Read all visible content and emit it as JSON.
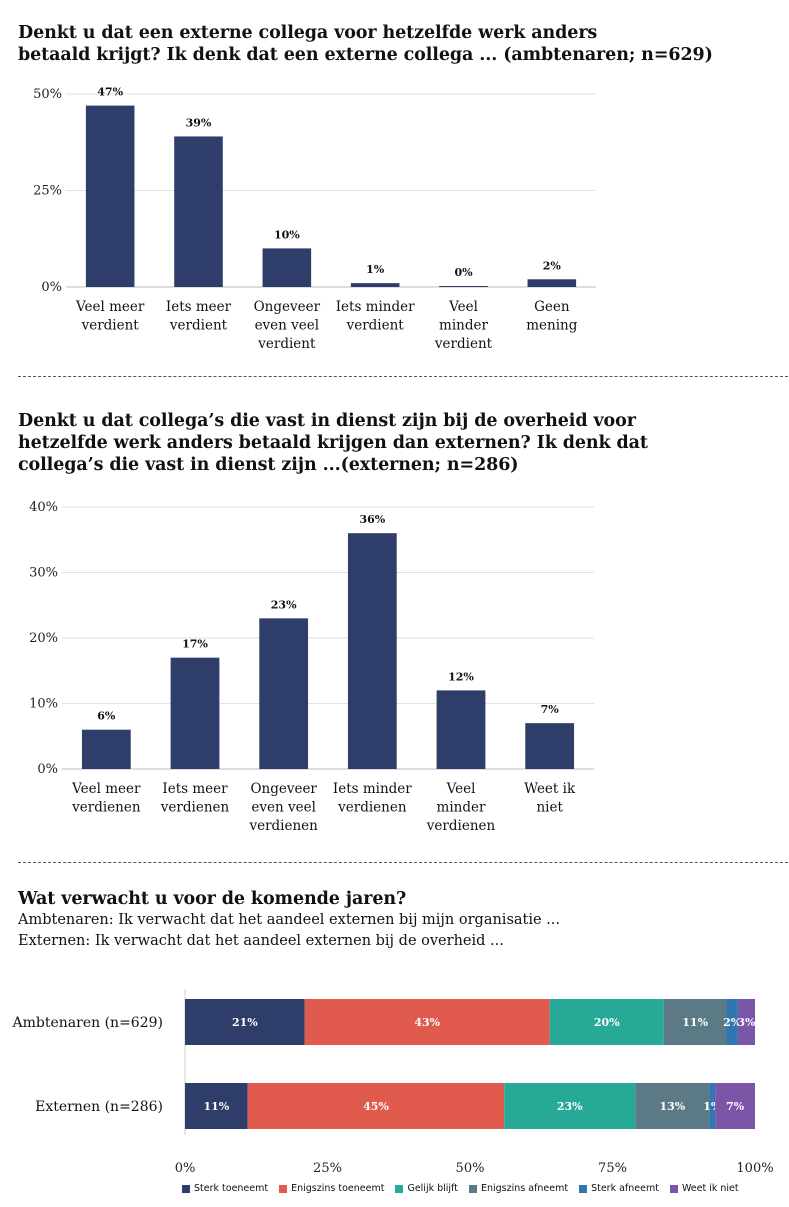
{
  "sections": [
    {
      "title_lines": [
        "Denkt u dat een externe collega voor hetzelfde werk anders",
        "betaald krijgt? Ik denk dat een externe collega ... (ambtenaren; n=629)"
      ]
    },
    {
      "title_lines": [
        "Denkt u dat collega’s die vast in dienst zijn bij de overheid voor",
        "hetzelfde werk anders betaald krijgen dan externen? Ik denk dat",
        "collega’s die vast in dienst zijn ...(externen; n=286)"
      ]
    },
    {
      "title_lines": [
        "Wat verwacht u voor de komende jaren?"
      ],
      "subtitle_lines": [
        "Ambtenaren: Ik verwacht dat het aandeel externen bij mijn organisatie ...",
        "Externen: Ik verwacht dat het aandeel externen bij de overheid ..."
      ]
    }
  ],
  "chart_data": [
    {
      "type": "bar",
      "categories": [
        "Veel meer verdient",
        "Iets meer verdient",
        "Ongeveer even veel verdient",
        "Iets minder verdient",
        "Veel minder verdient",
        "Geen mening"
      ],
      "category_lines": [
        [
          "Veel meer",
          "verdient"
        ],
        [
          "Iets meer",
          "verdient"
        ],
        [
          "Ongeveer",
          "even veel",
          "verdient"
        ],
        [
          "Iets minder",
          "verdient"
        ],
        [
          "Veel",
          "minder",
          "verdient"
        ],
        [
          "Geen",
          "mening"
        ]
      ],
      "values": [
        47,
        39,
        10,
        1,
        0,
        2
      ],
      "value_labels": [
        "47%",
        "39%",
        "10%",
        "1%",
        "0%",
        "2%"
      ],
      "yticks": [
        0,
        25,
        50
      ],
      "ytick_labels": [
        "0%",
        "25%",
        "50%"
      ],
      "ylim": [
        0,
        50
      ],
      "color": "#2e3d69",
      "grid": true
    },
    {
      "type": "bar",
      "categories": [
        "Veel meer verdienen",
        "Iets meer verdienen",
        "Ongeveer even veel verdienen",
        "Iets minder verdienen",
        "Veel minder verdienen",
        "Weet ik niet"
      ],
      "category_lines": [
        [
          "Veel meer",
          "verdienen"
        ],
        [
          "Iets meer",
          "verdienen"
        ],
        [
          "Ongeveer",
          "even veel",
          "verdienen"
        ],
        [
          "Iets minder",
          "verdienen"
        ],
        [
          "Veel",
          "minder",
          "verdienen"
        ],
        [
          "Weet ik",
          "niet"
        ]
      ],
      "values": [
        6,
        17,
        23,
        36,
        12,
        7
      ],
      "value_labels": [
        "6%",
        "17%",
        "23%",
        "36%",
        "12%",
        "7%"
      ],
      "yticks": [
        0,
        10,
        20,
        30,
        40
      ],
      "ytick_labels": [
        "0%",
        "10%",
        "20%",
        "30%",
        "40%"
      ],
      "ylim": [
        0,
        40
      ],
      "color": "#2e3d69",
      "grid": true
    },
    {
      "type": "bar",
      "orientation": "horizontal",
      "stacked": true,
      "categories": [
        "Ambtenaren (n=629)",
        "Externen (n=286)"
      ],
      "series": [
        {
          "name": "Sterk toeneemt",
          "color": "#2e3d69",
          "values": [
            21,
            11
          ],
          "labels": [
            "21%",
            "11%"
          ]
        },
        {
          "name": "Enigszins toeneemt",
          "color": "#e05a4e",
          "values": [
            43,
            45
          ],
          "labels": [
            "43%",
            "45%"
          ]
        },
        {
          "name": "Gelijk blijft",
          "color": "#26a996",
          "values": [
            20,
            23
          ],
          "labels": [
            "20%",
            "23%"
          ]
        },
        {
          "name": "Enigszins afneemt",
          "color": "#5c7986",
          "values": [
            11,
            13
          ],
          "labels": [
            "11%",
            "13%"
          ]
        },
        {
          "name": "Sterk afneemt",
          "color": "#2e77b0",
          "values": [
            2,
            1
          ],
          "labels": [
            "2%",
            "1%"
          ]
        },
        {
          "name": "Weet ik niet",
          "color": "#7b55a8",
          "values": [
            3,
            7
          ],
          "labels": [
            "3%",
            "7%"
          ]
        }
      ],
      "xticks": [
        0,
        25,
        50,
        75,
        100
      ],
      "xtick_labels": [
        "0%",
        "25%",
        "50%",
        "75%",
        "100%"
      ],
      "xlim": [
        0,
        100
      ],
      "legend_position": "bottom"
    }
  ]
}
